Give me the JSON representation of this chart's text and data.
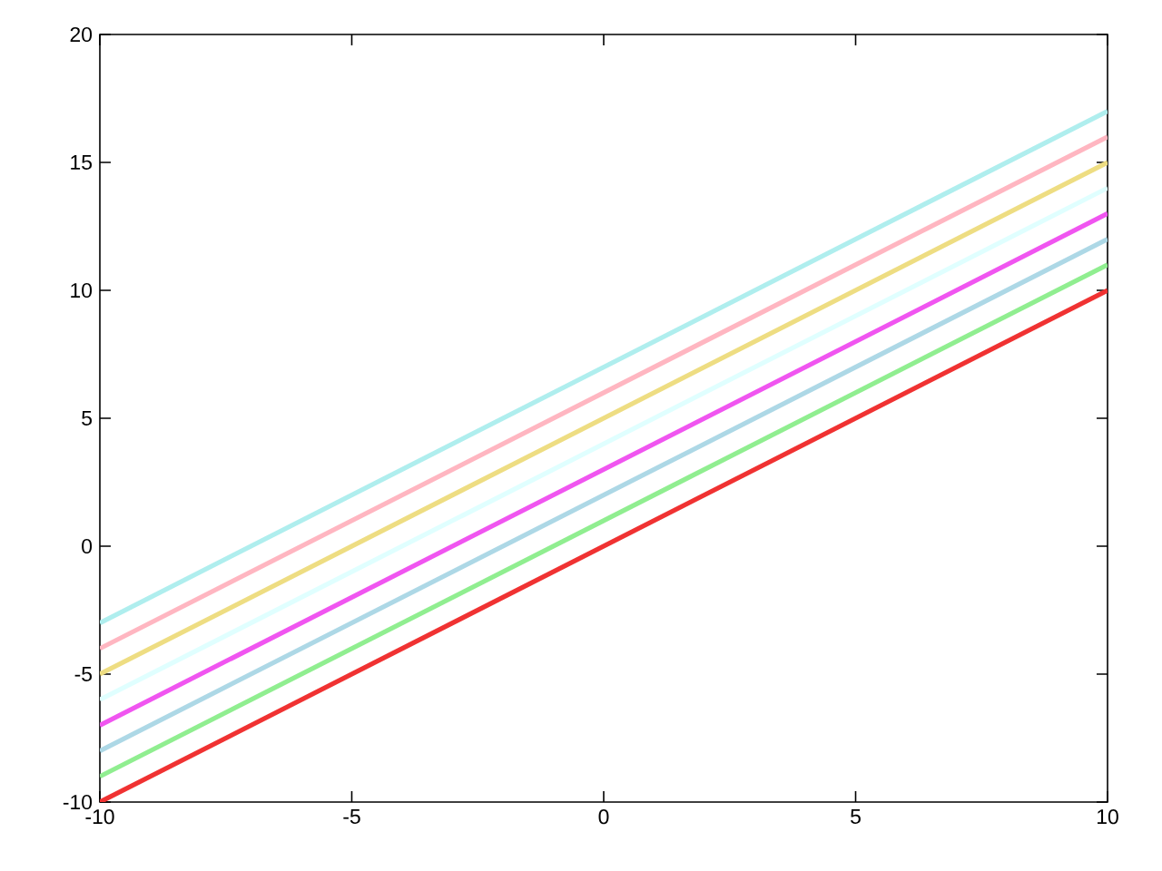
{
  "chart_data": {
    "type": "line",
    "x": [
      -10,
      10
    ],
    "series": [
      {
        "color": "#f03232",
        "values": [
          -10,
          10
        ]
      },
      {
        "color": "#90ee90",
        "values": [
          -9,
          11
        ]
      },
      {
        "color": "#add8e6",
        "values": [
          -8,
          12
        ]
      },
      {
        "color": "#f055f0",
        "values": [
          -7,
          13
        ]
      },
      {
        "color": "#e0ffff",
        "values": [
          -6,
          14
        ]
      },
      {
        "color": "#eedd82",
        "values": [
          -5,
          15
        ]
      },
      {
        "color": "#ffb6c1",
        "values": [
          -4,
          16
        ]
      },
      {
        "color": "#afeeee",
        "values": [
          -3,
          17
        ]
      }
    ],
    "xlim": [
      -10,
      10
    ],
    "ylim": [
      -10,
      20
    ],
    "xticks": [
      -10,
      -5,
      0,
      5,
      10
    ],
    "yticks": [
      -10,
      -5,
      0,
      5,
      10,
      15,
      20
    ],
    "grid": false,
    "marker": "none",
    "line_style": "solid"
  }
}
